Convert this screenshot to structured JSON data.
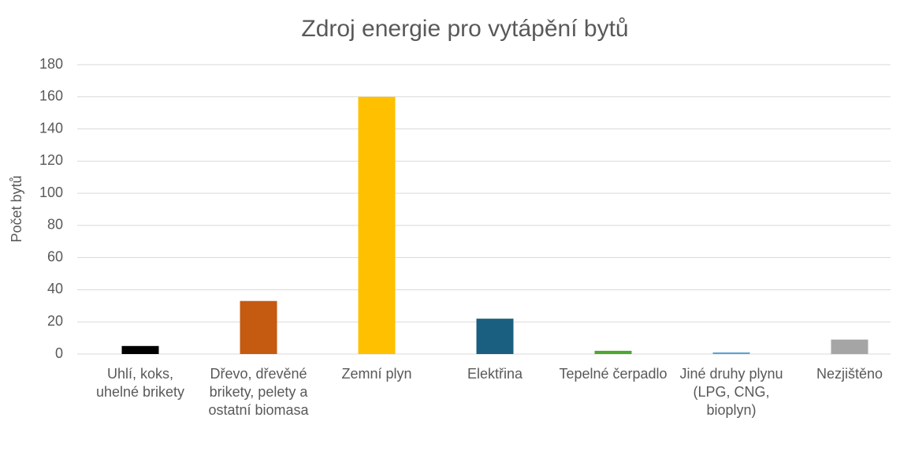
{
  "chart_data": {
    "type": "bar",
    "title": "Zdroj energie pro vytápění bytů",
    "y_label": "Počet bytů",
    "categories": [
      "Uhlí, koks, uhelné brikety",
      "Dřevo, dřevěné brikety, pelety a ostatní biomasa",
      "Zemní plyn",
      "Elektřina",
      "Tepelné čerpadlo",
      "Jiné druhy plynu (LPG, CNG, bioplyn)",
      "Nezjištěno"
    ],
    "values": [
      5,
      33,
      160,
      22,
      2,
      1,
      9
    ],
    "colors": [
      "#000000",
      "#c55a11",
      "#ffc000",
      "#1a5f80",
      "#4ea72e",
      "#5ba3d0",
      "#a5a5a5"
    ],
    "ylim": [
      0,
      180
    ],
    "yticks": [
      0,
      20,
      40,
      60,
      80,
      100,
      120,
      140,
      160,
      180
    ],
    "grid": true
  }
}
